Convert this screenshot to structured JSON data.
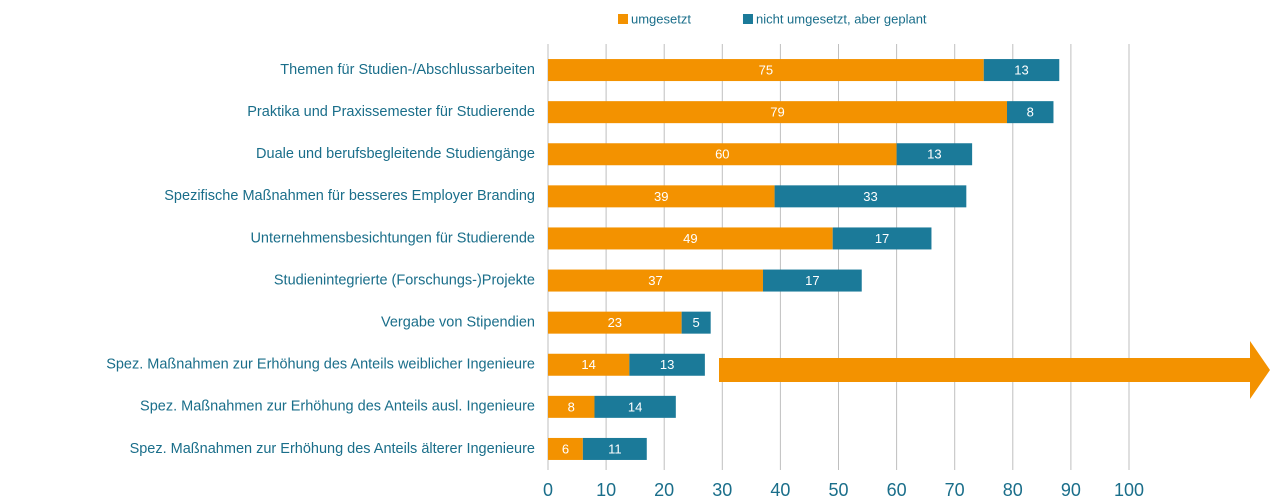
{
  "chart_data": {
    "type": "stacked_bar_horizontal",
    "categories": [
      "Themen für Studien-/Abschlussarbeiten",
      "Praktika und Praxissemester für Studierende",
      "Duale und berufsbegleitende Studiengänge",
      "Spezifische Maßnahmen für besseres Employer Branding ",
      "Unternehmensbesichtungen für Studierende",
      "Studienintegrierte (Forschungs-)Projekte",
      "Vergabe von Stipendien",
      "Spez. Maßnahmen zur Erhöhung des Anteils weiblicher Ingenieure",
      "Spez. Maßnahmen zur Erhöhung des Anteils ausl. Ingenieure",
      "Spez. Maßnahmen zur Erhöhung des Anteils älterer Ingenieure"
    ],
    "series": [
      {
        "name": "umgesetzt",
        "color": "#f39200",
        "values": [
          75,
          79,
          60,
          39,
          49,
          37,
          23,
          14,
          8,
          6
        ]
      },
      {
        "name": "nicht umgesetzt, aber geplant",
        "color": "#1b7a99",
        "values": [
          13,
          8,
          13,
          33,
          17,
          17,
          5,
          13,
          14,
          11
        ]
      }
    ],
    "xlim": [
      0,
      100
    ],
    "xticks": [
      0,
      10,
      20,
      30,
      40,
      50,
      60,
      70,
      80,
      90,
      100
    ],
    "grid": true,
    "legend": "top"
  }
}
